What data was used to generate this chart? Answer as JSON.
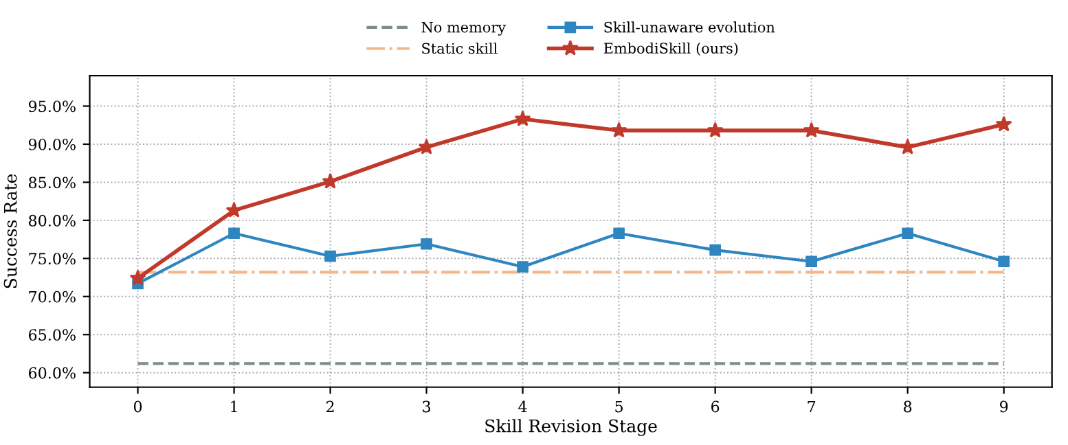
{
  "chart_data": {
    "type": "line",
    "xlabel": "Skill Revision Stage",
    "ylabel": "Success Rate",
    "categories": [
      "0",
      "1",
      "2",
      "3",
      "4",
      "5",
      "6",
      "7",
      "8",
      "9"
    ],
    "series": [
      {
        "name": "No memory",
        "color": "#7f8c8d",
        "values": [
          61.2,
          61.2,
          61.2,
          61.2,
          61.2,
          61.2,
          61.2,
          61.2,
          61.2,
          61.2
        ],
        "marker": "none",
        "line_style": "dashed"
      },
      {
        "name": "Static skill",
        "color": "#f5b78a",
        "values": [
          73.2,
          73.2,
          73.2,
          73.2,
          73.2,
          73.2,
          73.2,
          73.2,
          73.2,
          73.2
        ],
        "marker": "none",
        "line_style": "dashdot"
      },
      {
        "name": "Skill-unaware evolution",
        "color": "#2e86c1",
        "values": [
          71.7,
          78.3,
          75.3,
          76.9,
          73.9,
          78.3,
          76.1,
          74.6,
          78.3,
          74.6
        ],
        "marker": "square",
        "line_style": "solid"
      },
      {
        "name": "EmbodiSkill (ours)",
        "color": "#c0392b",
        "values": [
          72.4,
          81.3,
          85.1,
          89.6,
          93.3,
          91.8,
          91.8,
          91.8,
          89.6,
          92.6
        ],
        "marker": "star",
        "line_style": "solid"
      }
    ],
    "ylim": [
      58.1,
      99.0
    ],
    "yticks": [
      {
        "value": 60,
        "label": "60.0%"
      },
      {
        "value": 65,
        "label": "65.0%"
      },
      {
        "value": 70,
        "label": "70.0%"
      },
      {
        "value": 75,
        "label": "75.0%"
      },
      {
        "value": 80,
        "label": "80.0%"
      },
      {
        "value": 85,
        "label": "85.0%"
      },
      {
        "value": 90,
        "label": "90.0%"
      },
      {
        "value": 95,
        "label": "95.0%"
      }
    ],
    "grid": true,
    "legend": "top"
  }
}
